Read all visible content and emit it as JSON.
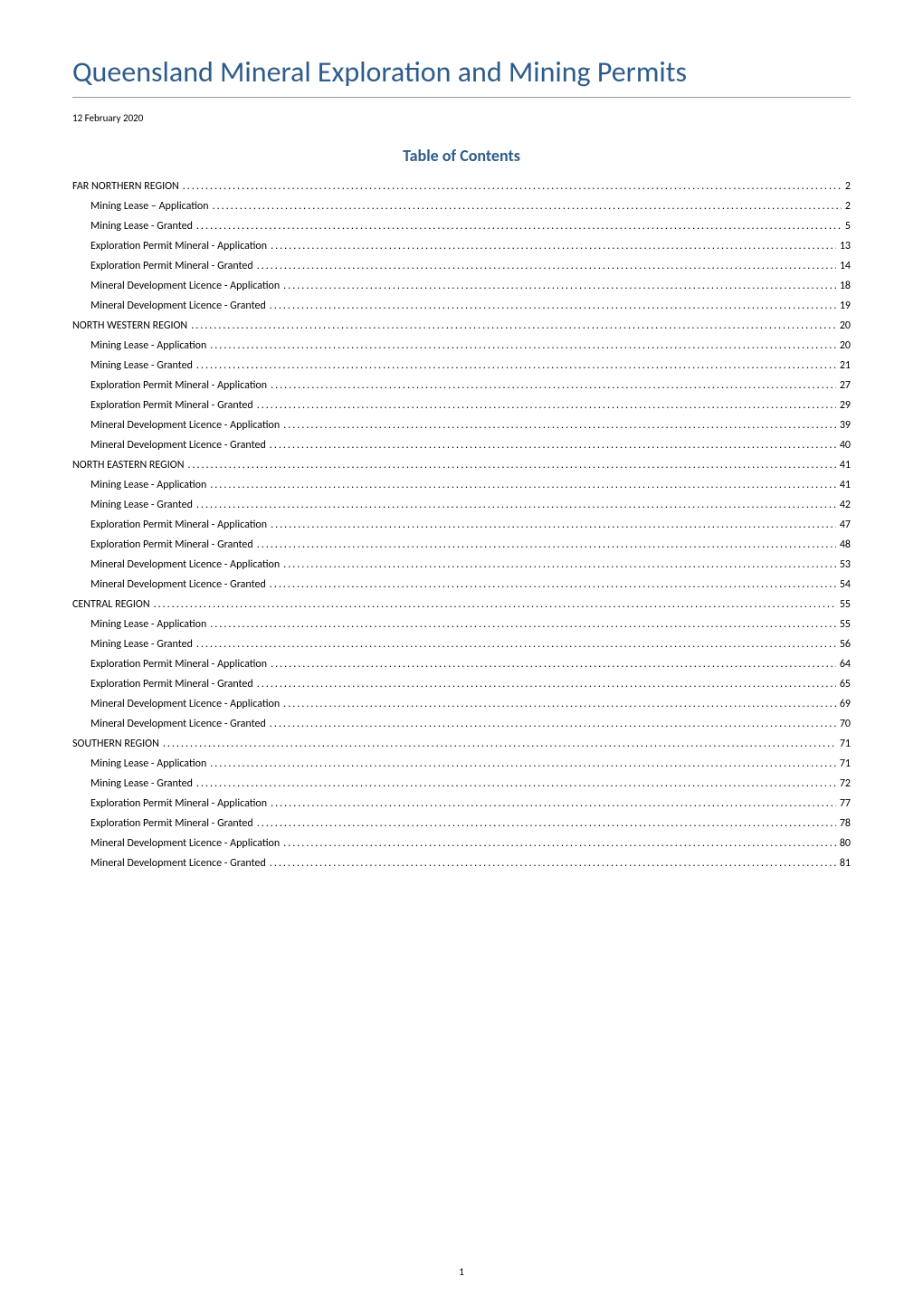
{
  "document": {
    "title": "Queensland Mineral Exploration and Mining Permits",
    "date": "12 February 2020",
    "toc_heading": "Table of Contents",
    "page_number": "1",
    "colors": {
      "heading_color": "#2e5c8a",
      "text_color": "#000000",
      "border_color": "#999999",
      "background_color": "#ffffff"
    },
    "typography": {
      "title_fontsize": 32,
      "toc_heading_fontsize": 18,
      "entry_fontsize": 12,
      "date_fontsize": 11
    },
    "toc_entries": [
      {
        "label": "FAR NORTHERN REGION",
        "page": "2",
        "level": 0
      },
      {
        "label": "Mining Lease – Application",
        "page": "2",
        "level": 1
      },
      {
        "label": "Mining Lease - Granted",
        "page": "5",
        "level": 1
      },
      {
        "label": "Exploration Permit Mineral - Application",
        "page": "13",
        "level": 1
      },
      {
        "label": "Exploration Permit Mineral - Granted",
        "page": "14",
        "level": 1
      },
      {
        "label": "Mineral Development Licence - Application",
        "page": "18",
        "level": 1
      },
      {
        "label": "Mineral Development Licence - Granted",
        "page": "19",
        "level": 1
      },
      {
        "label": "NORTH WESTERN REGION",
        "page": "20",
        "level": 0
      },
      {
        "label": "Mining Lease - Application",
        "page": "20",
        "level": 1
      },
      {
        "label": "Mining Lease - Granted",
        "page": "21",
        "level": 1
      },
      {
        "label": "Exploration Permit Mineral - Application",
        "page": "27",
        "level": 1
      },
      {
        "label": "Exploration Permit Mineral - Granted",
        "page": "29",
        "level": 1
      },
      {
        "label": "Mineral Development Licence - Application",
        "page": "39",
        "level": 1
      },
      {
        "label": "Mineral Development Licence - Granted",
        "page": "40",
        "level": 1
      },
      {
        "label": "NORTH EASTERN REGION",
        "page": "41",
        "level": 0
      },
      {
        "label": "Mining Lease - Application",
        "page": "41",
        "level": 1
      },
      {
        "label": "Mining Lease - Granted",
        "page": "42",
        "level": 1
      },
      {
        "label": "Exploration Permit Mineral - Application",
        "page": "47",
        "level": 1
      },
      {
        "label": "Exploration Permit Mineral - Granted",
        "page": "48",
        "level": 1
      },
      {
        "label": "Mineral Development Licence - Application",
        "page": "53",
        "level": 1
      },
      {
        "label": "Mineral Development Licence - Granted",
        "page": "54",
        "level": 1
      },
      {
        "label": "CENTRAL REGION",
        "page": "55",
        "level": 0
      },
      {
        "label": "Mining Lease - Application",
        "page": "55",
        "level": 1
      },
      {
        "label": "Mining Lease - Granted",
        "page": "56",
        "level": 1
      },
      {
        "label": "Exploration Permit Mineral - Application",
        "page": "64",
        "level": 1
      },
      {
        "label": "Exploration Permit Mineral - Granted",
        "page": "65",
        "level": 1
      },
      {
        "label": "Mineral Development Licence - Application",
        "page": "69",
        "level": 1
      },
      {
        "label": "Mineral Development Licence - Granted",
        "page": "70",
        "level": 1
      },
      {
        "label": "SOUTHERN REGION",
        "page": "71",
        "level": 0
      },
      {
        "label": "Mining Lease - Application",
        "page": "71",
        "level": 1
      },
      {
        "label": "Mining Lease - Granted",
        "page": "72",
        "level": 1
      },
      {
        "label": "Exploration Permit Mineral - Application",
        "page": "77",
        "level": 1
      },
      {
        "label": "Exploration Permit Mineral - Granted",
        "page": "78",
        "level": 1
      },
      {
        "label": "Mineral Development Licence - Application",
        "page": "80",
        "level": 1
      },
      {
        "label": "Mineral Development Licence - Granted",
        "page": "81",
        "level": 1
      }
    ]
  }
}
